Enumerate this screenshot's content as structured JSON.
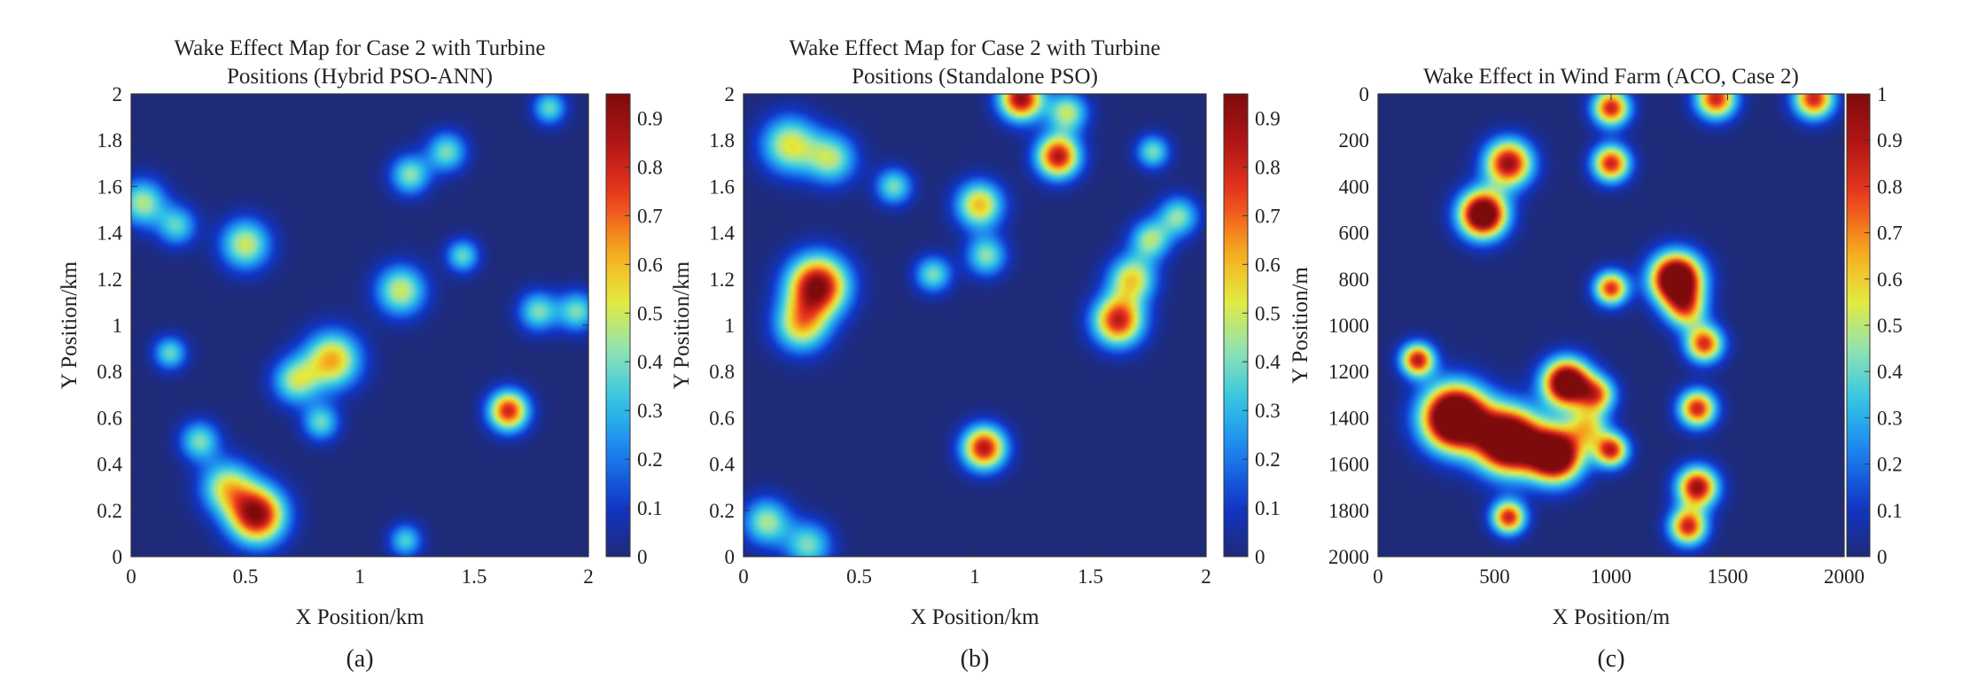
{
  "colormap": [
    "#1f2a78",
    "#1036c8",
    "#1c7ff0",
    "#2fc3e6",
    "#8fe3b4",
    "#e6ea3c",
    "#f7a51e",
    "#ee3a1f",
    "#b31616",
    "#7e0b0b"
  ],
  "chart_data": [
    {
      "type": "heatmap",
      "panel_label": "(a)",
      "title": [
        "Wake Effect Map for Case 2 with Turbine",
        "Positions (Hybrid PSO-ANN)"
      ],
      "xlabel": "X Position/km",
      "ylabel": "Y Position/km",
      "xlim": [
        0,
        2
      ],
      "ylim": [
        0,
        2
      ],
      "y_direction": "up",
      "xticks": [
        0,
        0.5,
        1,
        1.5,
        2
      ],
      "xtick_labels": [
        "0",
        "0.5",
        "1",
        "1.5",
        "2"
      ],
      "yticks": [
        0,
        0.2,
        0.4,
        0.6,
        0.8,
        1,
        1.2,
        1.4,
        1.6,
        1.8,
        2
      ],
      "ytick_labels": [
        "0",
        "0.2",
        "0.4",
        "0.6",
        "0.8",
        "1",
        "1.2",
        "1.4",
        "1.6",
        "1.8",
        "2"
      ],
      "colorbar": {
        "min": 0,
        "max": 0.95,
        "ticks": [
          0,
          0.1,
          0.2,
          0.3,
          0.4,
          0.5,
          0.6,
          0.7,
          0.8,
          0.9
        ],
        "tick_labels": [
          "0",
          "0.1",
          "0.2",
          "0.3",
          "0.4",
          "0.5",
          "0.6",
          "0.7",
          "0.8",
          "0.9"
        ]
      },
      "hotspots": [
        {
          "x": 0.55,
          "y": 0.18,
          "v": 0.93,
          "s": 0.085
        },
        {
          "x": 0.42,
          "y": 0.3,
          "v": 0.5,
          "s": 0.08
        },
        {
          "x": 0.3,
          "y": 0.5,
          "v": 0.4,
          "s": 0.06
        },
        {
          "x": 0.88,
          "y": 0.85,
          "v": 0.62,
          "s": 0.085
        },
        {
          "x": 0.72,
          "y": 0.76,
          "v": 0.45,
          "s": 0.07
        },
        {
          "x": 0.83,
          "y": 0.58,
          "v": 0.38,
          "s": 0.055
        },
        {
          "x": 1.65,
          "y": 0.63,
          "v": 0.8,
          "s": 0.06
        },
        {
          "x": 1.2,
          "y": 0.07,
          "v": 0.35,
          "s": 0.05
        },
        {
          "x": 0.17,
          "y": 0.88,
          "v": 0.38,
          "s": 0.05
        },
        {
          "x": 1.18,
          "y": 1.15,
          "v": 0.5,
          "s": 0.075
        },
        {
          "x": 1.45,
          "y": 1.3,
          "v": 0.38,
          "s": 0.05
        },
        {
          "x": 0.5,
          "y": 1.35,
          "v": 0.5,
          "s": 0.075
        },
        {
          "x": 0.05,
          "y": 1.53,
          "v": 0.46,
          "s": 0.07
        },
        {
          "x": 0.2,
          "y": 1.43,
          "v": 0.36,
          "s": 0.06
        },
        {
          "x": 1.22,
          "y": 1.65,
          "v": 0.42,
          "s": 0.06
        },
        {
          "x": 1.38,
          "y": 1.75,
          "v": 0.4,
          "s": 0.06
        },
        {
          "x": 1.83,
          "y": 1.94,
          "v": 0.38,
          "s": 0.05
        },
        {
          "x": 1.78,
          "y": 1.06,
          "v": 0.4,
          "s": 0.06
        },
        {
          "x": 1.95,
          "y": 1.06,
          "v": 0.4,
          "s": 0.06
        }
      ]
    },
    {
      "type": "heatmap",
      "panel_label": "(b)",
      "title": [
        "Wake Effect Map for Case 2 with Turbine",
        "Positions (Standalone PSO)"
      ],
      "xlabel": "X Position/km",
      "ylabel": "Y Position/km",
      "xlim": [
        0,
        2
      ],
      "ylim": [
        0,
        2
      ],
      "y_direction": "up",
      "xticks": [
        0,
        0.5,
        1,
        1.5,
        2
      ],
      "xtick_labels": [
        "0",
        "0.5",
        "1",
        "1.5",
        "2"
      ],
      "yticks": [
        0,
        0.2,
        0.4,
        0.6,
        0.8,
        1,
        1.2,
        1.4,
        1.6,
        1.8,
        2
      ],
      "ytick_labels": [
        "0",
        "0.2",
        "0.4",
        "0.6",
        "0.8",
        "1",
        "1.2",
        "1.4",
        "1.6",
        "1.8",
        "2"
      ],
      "colorbar": {
        "min": 0,
        "max": 0.95,
        "ticks": [
          0,
          0.1,
          0.2,
          0.3,
          0.4,
          0.5,
          0.6,
          0.7,
          0.8,
          0.9
        ],
        "tick_labels": [
          "0",
          "0.1",
          "0.2",
          "0.3",
          "0.4",
          "0.5",
          "0.6",
          "0.7",
          "0.8",
          "0.9"
        ]
      },
      "hotspots": [
        {
          "x": 0.32,
          "y": 1.17,
          "v": 0.95,
          "s": 0.09
        },
        {
          "x": 0.25,
          "y": 1.0,
          "v": 0.55,
          "s": 0.08
        },
        {
          "x": 0.2,
          "y": 1.78,
          "v": 0.52,
          "s": 0.085
        },
        {
          "x": 0.38,
          "y": 1.72,
          "v": 0.45,
          "s": 0.075
        },
        {
          "x": 0.65,
          "y": 1.6,
          "v": 0.4,
          "s": 0.055
        },
        {
          "x": 1.02,
          "y": 1.52,
          "v": 0.6,
          "s": 0.07
        },
        {
          "x": 1.05,
          "y": 1.3,
          "v": 0.42,
          "s": 0.06
        },
        {
          "x": 0.82,
          "y": 1.22,
          "v": 0.4,
          "s": 0.055
        },
        {
          "x": 1.2,
          "y": 1.98,
          "v": 0.9,
          "s": 0.065
        },
        {
          "x": 1.36,
          "y": 1.73,
          "v": 0.85,
          "s": 0.065
        },
        {
          "x": 1.4,
          "y": 1.92,
          "v": 0.48,
          "s": 0.06
        },
        {
          "x": 1.62,
          "y": 1.02,
          "v": 0.82,
          "s": 0.075
        },
        {
          "x": 1.68,
          "y": 1.2,
          "v": 0.55,
          "s": 0.07
        },
        {
          "x": 1.76,
          "y": 1.37,
          "v": 0.45,
          "s": 0.06
        },
        {
          "x": 1.88,
          "y": 1.47,
          "v": 0.42,
          "s": 0.06
        },
        {
          "x": 1.77,
          "y": 1.75,
          "v": 0.4,
          "s": 0.05
        },
        {
          "x": 1.04,
          "y": 0.47,
          "v": 0.85,
          "s": 0.065
        },
        {
          "x": 0.1,
          "y": 0.15,
          "v": 0.45,
          "s": 0.07
        },
        {
          "x": 0.28,
          "y": 0.05,
          "v": 0.4,
          "s": 0.07
        }
      ]
    },
    {
      "type": "heatmap",
      "panel_label": "(c)",
      "title": [
        "Wake Effect in Wind Farm (ACO, Case 2)"
      ],
      "xlabel": "X Position/m",
      "ylabel": "Y Position/m",
      "xlim": [
        0,
        2000
      ],
      "ylim": [
        0,
        2000
      ],
      "y_direction": "down",
      "xticks": [
        0,
        500,
        1000,
        1500,
        2000
      ],
      "xtick_labels": [
        "0",
        "500",
        "1000",
        "1500",
        "2000"
      ],
      "yticks": [
        0,
        200,
        400,
        600,
        800,
        1000,
        1200,
        1400,
        1600,
        1800,
        2000
      ],
      "ytick_labels": [
        "0",
        "200",
        "400",
        "600",
        "800",
        "1000",
        "1200",
        "1400",
        "1600",
        "1800",
        "2000"
      ],
      "colorbar": {
        "min": 0,
        "max": 1,
        "ticks": [
          0,
          0.1,
          0.2,
          0.3,
          0.4,
          0.5,
          0.6,
          0.7,
          0.8,
          0.9,
          1
        ],
        "tick_labels": [
          "0",
          "0.1",
          "0.2",
          "0.3",
          "0.4",
          "0.5",
          "0.6",
          "0.7",
          "0.8",
          "0.9",
          "1"
        ]
      },
      "hotspots": [
        {
          "x": 450,
          "y": 520,
          "v": 1.25,
          "s": 70
        },
        {
          "x": 560,
          "y": 300,
          "v": 0.95,
          "s": 70
        },
        {
          "x": 1000,
          "y": 60,
          "v": 0.85,
          "s": 55
        },
        {
          "x": 1000,
          "y": 300,
          "v": 0.85,
          "s": 55
        },
        {
          "x": 1450,
          "y": 20,
          "v": 0.85,
          "s": 60
        },
        {
          "x": 1870,
          "y": 20,
          "v": 0.85,
          "s": 60
        },
        {
          "x": 1280,
          "y": 800,
          "v": 1.35,
          "s": 75
        },
        {
          "x": 1000,
          "y": 840,
          "v": 0.82,
          "s": 50
        },
        {
          "x": 1320,
          "y": 930,
          "v": 0.6,
          "s": 60
        },
        {
          "x": 1400,
          "y": 1080,
          "v": 0.82,
          "s": 55
        },
        {
          "x": 1370,
          "y": 1360,
          "v": 0.85,
          "s": 55
        },
        {
          "x": 1370,
          "y": 1700,
          "v": 0.95,
          "s": 60
        },
        {
          "x": 1330,
          "y": 1870,
          "v": 0.85,
          "s": 55
        },
        {
          "x": 170,
          "y": 1150,
          "v": 0.88,
          "s": 50
        },
        {
          "x": 330,
          "y": 1400,
          "v": 1.5,
          "s": 95
        },
        {
          "x": 560,
          "y": 1500,
          "v": 1.4,
          "s": 95
        },
        {
          "x": 760,
          "y": 1560,
          "v": 1.3,
          "s": 80
        },
        {
          "x": 810,
          "y": 1250,
          "v": 1.25,
          "s": 70
        },
        {
          "x": 940,
          "y": 1300,
          "v": 0.65,
          "s": 55
        },
        {
          "x": 1000,
          "y": 1540,
          "v": 0.85,
          "s": 50
        },
        {
          "x": 900,
          "y": 1440,
          "v": 0.5,
          "s": 60
        },
        {
          "x": 560,
          "y": 1830,
          "v": 0.85,
          "s": 50
        }
      ]
    }
  ]
}
